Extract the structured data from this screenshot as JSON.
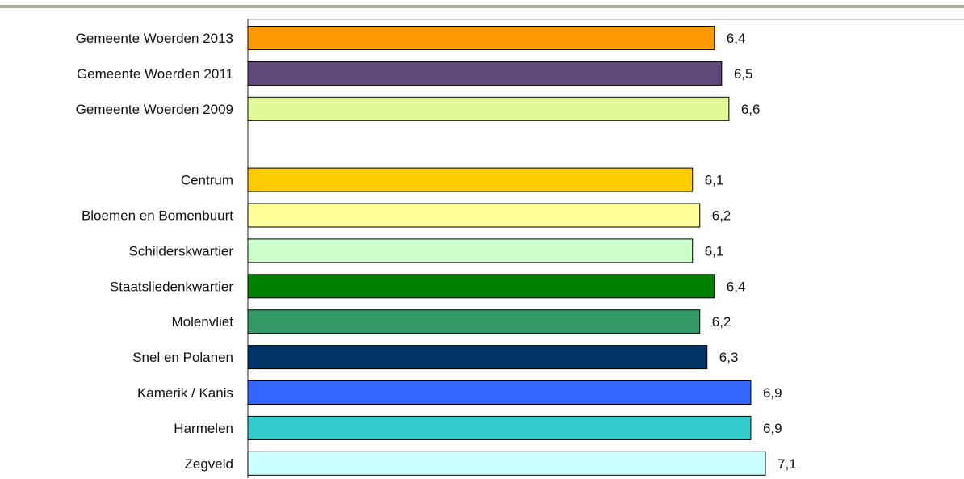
{
  "chart_data": {
    "type": "bar",
    "orientation": "horizontal",
    "categories": [
      "Gemeente Woerden 2013",
      "Gemeente Woerden 2011",
      "Gemeente Woerden 2009",
      "",
      "Centrum",
      "Bloemen en Bomenbuurt",
      "Schilderskwartier",
      "Staatsliedenkwartier",
      "Molenvliet",
      "Snel en Polanen",
      "Kamerik / Kanis",
      "Harmelen",
      "Zegveld"
    ],
    "values": [
      6.4,
      6.5,
      6.6,
      null,
      6.1,
      6.2,
      6.1,
      6.4,
      6.2,
      6.3,
      6.9,
      6.9,
      7.1
    ],
    "value_labels": [
      "6,4",
      "6,5",
      "6,6",
      "",
      "6,1",
      "6,2",
      "6,1",
      "6,4",
      "6,2",
      "6,3",
      "6,9",
      "6,9",
      "7,1"
    ],
    "colors": [
      "#ff9900",
      "#604a7b",
      "#e2f99a",
      "",
      "#ffcc00",
      "#ffff99",
      "#ccffcc",
      "#008000",
      "#339966",
      "#003366",
      "#3366ff",
      "#33cccc",
      "#ccffff"
    ],
    "xlim": [
      0,
      7.1
    ],
    "grid": false,
    "legend": "none"
  }
}
